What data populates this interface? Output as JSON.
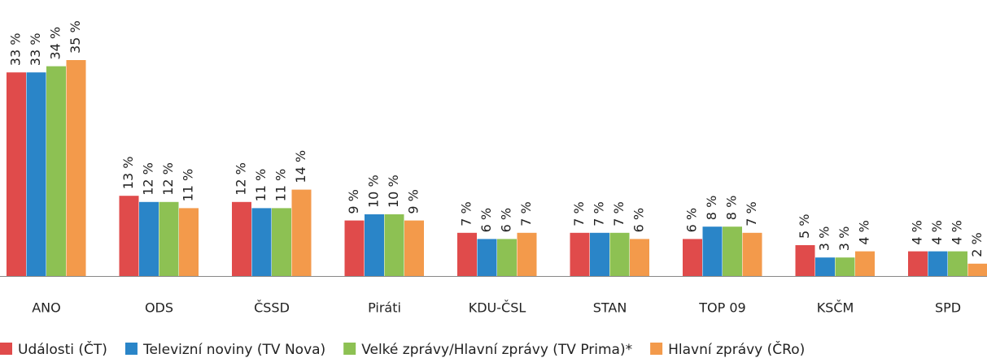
{
  "chart_data": {
    "type": "bar",
    "categories": [
      "ANO",
      "ODS",
      "ČSSD",
      "Piráti",
      "KDU-ČSL",
      "STAN",
      "TOP 09",
      "KSČM",
      "SPD"
    ],
    "series": [
      {
        "name": "Události (ČT)",
        "color": "#e04b4b",
        "values": [
          33,
          13,
          12,
          9,
          7,
          7,
          6,
          5,
          4
        ],
        "value_labels": [
          "33 %",
          "13 %",
          "12 %",
          "9 %",
          "7 %",
          "7 %",
          "6 %",
          "5 %",
          "4 %"
        ]
      },
      {
        "name": "Televizní noviny (TV Nova)",
        "color": "#2a85c8",
        "values": [
          33,
          12,
          11,
          10,
          6,
          7,
          8,
          3,
          4
        ],
        "value_labels": [
          "33 %",
          "12 %",
          "11 %",
          "10 %",
          "6 %",
          "7 %",
          "8 %",
          "3 %",
          "4 %"
        ]
      },
      {
        "name": "Velké zprávy/Hlavní zprávy (TV Prima)*",
        "color": "#8dc153",
        "values": [
          34,
          12,
          11,
          10,
          6,
          7,
          8,
          3,
          4
        ],
        "value_labels": [
          "34 %",
          "12 %",
          "11 %",
          "10 %",
          "6 %",
          "7 %",
          "8 %",
          "3 %",
          "4 %"
        ]
      },
      {
        "name": "Hlavní zprávy (ČRo)",
        "color": "#f39a4b",
        "values": [
          35,
          11,
          14,
          9,
          7,
          6,
          7,
          4,
          2
        ],
        "value_labels": [
          "35 %",
          "11 %",
          "14 %",
          "9 %",
          "7 %",
          "6 %",
          "7 %",
          "4 %",
          "2 %"
        ]
      }
    ]
  }
}
